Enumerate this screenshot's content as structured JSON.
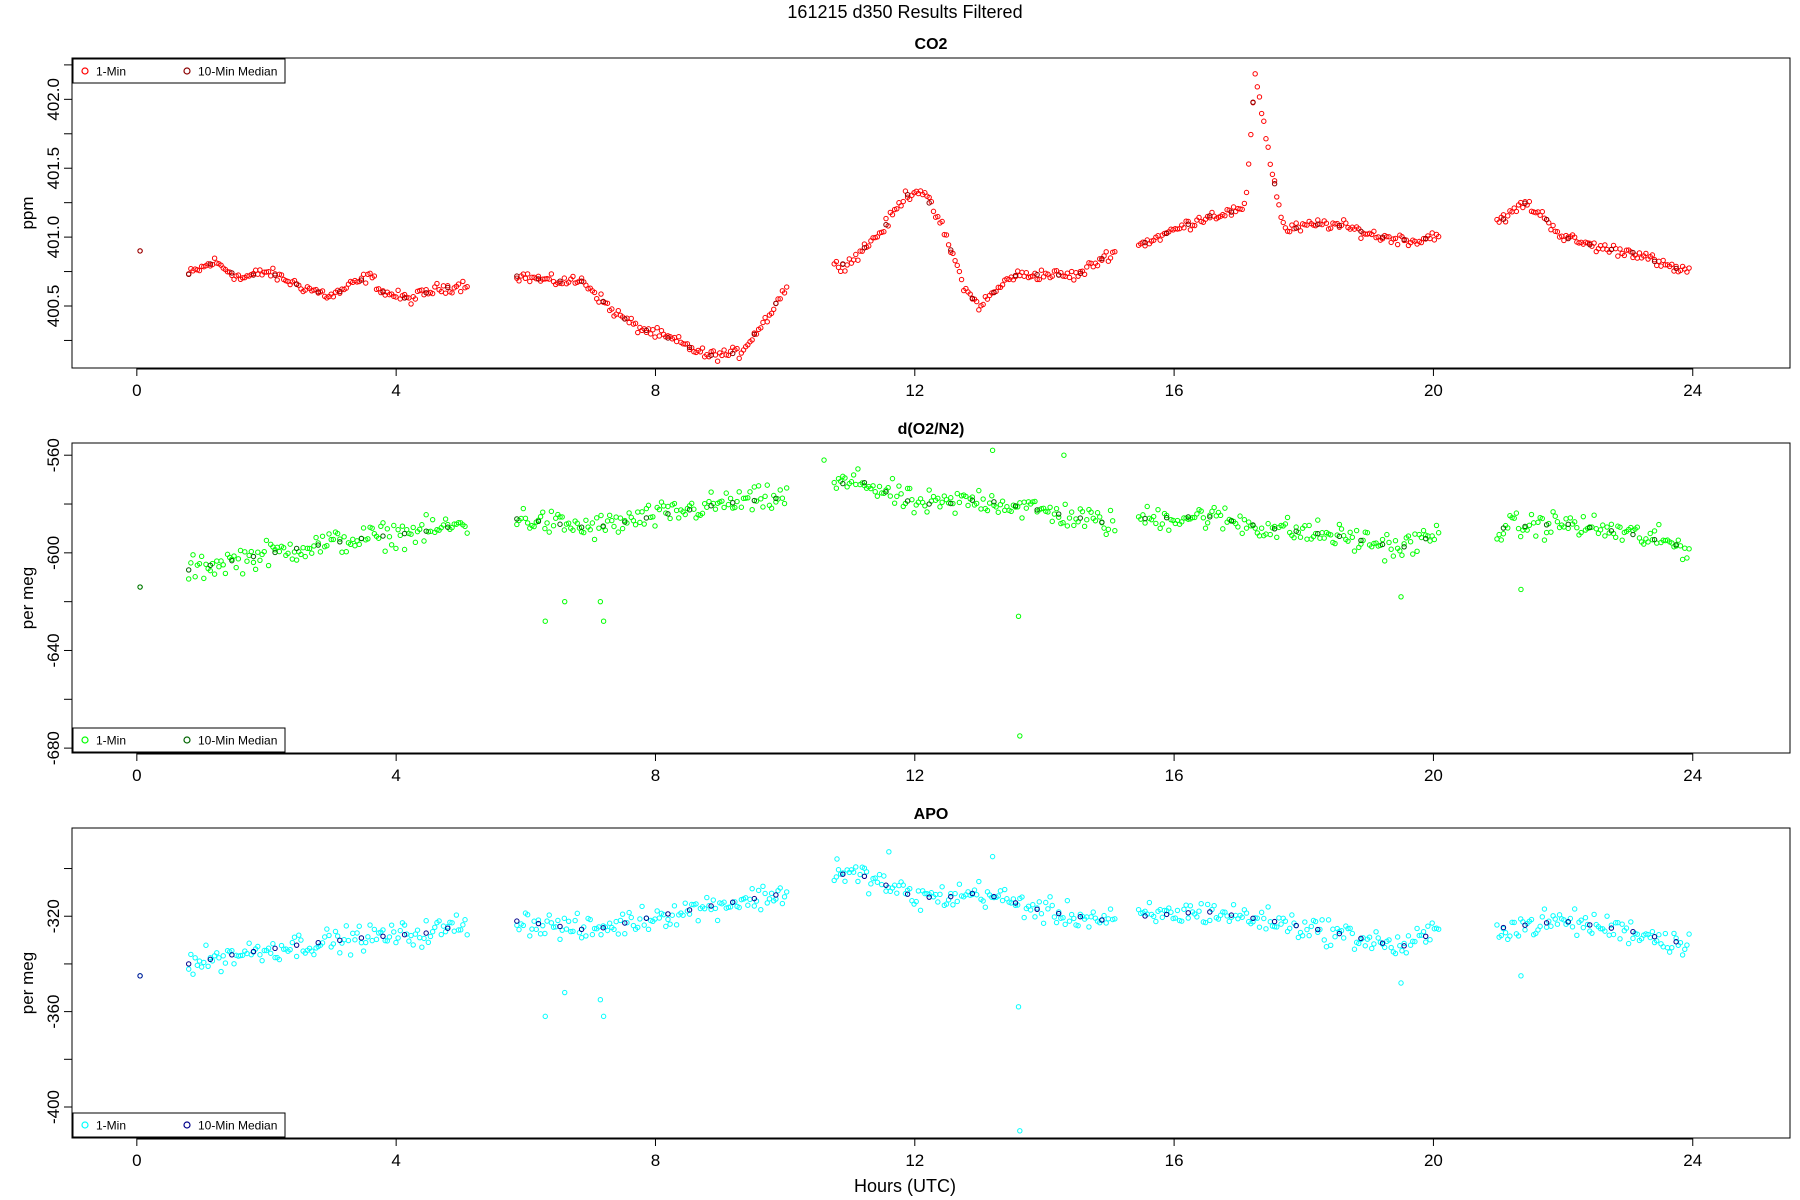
{
  "figure": {
    "title": "161215   d350   Results Filtered",
    "xlabel": "Hours (UTC)"
  },
  "legend": {
    "item1": "1-Min",
    "item2": "10-Min Median"
  },
  "chart_data": [
    {
      "type": "scatter",
      "title": "CO2",
      "ylabel": "ppm",
      "xlim": [
        -1,
        25.5
      ],
      "ylim": [
        400.05,
        402.3
      ],
      "xticks": [
        0,
        4,
        8,
        12,
        16,
        20,
        24
      ],
      "yticks": [
        400.5,
        401.0,
        401.5,
        402.0
      ],
      "ytick_labels": [
        "400.5",
        "401.0",
        "401.5",
        "402.0"
      ],
      "grid": false,
      "legend_position": "top-left",
      "colors": {
        "one_min": "#ff0000",
        "median": "#8b0000"
      },
      "keys": [
        [
          0.05,
          400.9
        ],
        [
          0.8,
          400.73
        ],
        [
          1.2,
          400.82
        ],
        [
          1.6,
          400.7
        ],
        [
          2.0,
          400.75
        ],
        [
          2.5,
          400.65
        ],
        [
          3.0,
          400.57
        ],
        [
          3.3,
          400.65
        ],
        [
          3.6,
          400.72
        ],
        [
          3.8,
          400.6
        ],
        [
          4.2,
          400.55
        ],
        [
          4.6,
          400.62
        ],
        [
          5.0,
          400.65
        ],
        [
          5.9,
          400.72
        ],
        [
          6.4,
          400.68
        ],
        [
          6.9,
          400.68
        ],
        [
          7.3,
          400.48
        ],
        [
          7.7,
          400.35
        ],
        [
          8.3,
          400.25
        ],
        [
          8.8,
          400.14
        ],
        [
          9.3,
          400.16
        ],
        [
          9.7,
          400.4
        ],
        [
          10.1,
          400.7
        ],
        [
          10.7,
          400.78
        ],
        [
          11.0,
          400.82
        ],
        [
          11.5,
          401.05
        ],
        [
          11.85,
          401.3
        ],
        [
          12.1,
          401.35
        ],
        [
          12.4,
          401.1
        ],
        [
          12.8,
          400.6
        ],
        [
          13.0,
          400.5
        ],
        [
          13.5,
          400.72
        ],
        [
          14.0,
          400.73
        ],
        [
          14.5,
          400.72
        ],
        [
          15.0,
          400.88
        ],
        [
          15.5,
          400.95
        ],
        [
          16.0,
          401.05
        ],
        [
          16.5,
          401.15
        ],
        [
          17.1,
          401.2
        ],
        [
          17.25,
          402.2
        ],
        [
          17.5,
          401.5
        ],
        [
          17.7,
          401.05
        ],
        [
          18.3,
          401.1
        ],
        [
          18.6,
          401.08
        ],
        [
          19.2,
          401.0
        ],
        [
          19.8,
          400.97
        ],
        [
          20.0,
          401.02
        ],
        [
          21.0,
          401.1
        ],
        [
          21.4,
          401.25
        ],
        [
          21.7,
          401.15
        ],
        [
          22.0,
          401.0
        ],
        [
          22.6,
          400.92
        ],
        [
          23.2,
          400.88
        ],
        [
          23.5,
          400.8
        ],
        [
          23.95,
          400.75
        ]
      ],
      "noise": 0.03,
      "spikes": [],
      "gaps": [
        [
          0.12,
          0.75
        ],
        [
          5.1,
          5.85
        ],
        [
          10.05,
          10.75
        ],
        [
          15.1,
          15.45
        ],
        [
          20.1,
          20.95
        ]
      ]
    },
    {
      "type": "scatter",
      "title": "d(O2/N2)",
      "ylabel": "per meg",
      "xlim": [
        -1,
        25.5
      ],
      "ylim": [
        -682,
        -555
      ],
      "xticks": [
        0,
        4,
        8,
        12,
        16,
        20,
        24
      ],
      "yticks": [
        -680,
        -640,
        -600,
        -560
      ],
      "ytick_labels": [
        "-680",
        "-640",
        "-600",
        "-560"
      ],
      "grid": false,
      "legend_position": "bottom-left",
      "colors": {
        "one_min": "#00ff00",
        "median": "#006400"
      },
      "keys": [
        [
          0.05,
          -614
        ],
        [
          0.8,
          -607
        ],
        [
          1.5,
          -603
        ],
        [
          2.5,
          -598
        ],
        [
          3.5,
          -594
        ],
        [
          4.5,
          -591
        ],
        [
          5.1,
          -588
        ],
        [
          5.9,
          -586
        ],
        [
          7.0,
          -590
        ],
        [
          8.0,
          -585
        ],
        [
          9.0,
          -580
        ],
        [
          10.1,
          -577
        ],
        [
          10.7,
          -572
        ],
        [
          11.2,
          -571
        ],
        [
          12.0,
          -580
        ],
        [
          12.5,
          -580
        ],
        [
          13.0,
          -578
        ],
        [
          14.0,
          -583
        ],
        [
          15.0,
          -588
        ],
        [
          15.5,
          -586
        ],
        [
          16.5,
          -585
        ],
        [
          17.5,
          -590
        ],
        [
          18.5,
          -593
        ],
        [
          19.5,
          -598
        ],
        [
          20.0,
          -593
        ],
        [
          21.0,
          -590
        ],
        [
          22.0,
          -588
        ],
        [
          23.0,
          -592
        ],
        [
          23.95,
          -598
        ]
      ],
      "noise": 4,
      "spikes": [
        [
          6.3,
          -628
        ],
        [
          6.6,
          -620
        ],
        [
          7.2,
          -628
        ],
        [
          7.15,
          -620
        ],
        [
          13.6,
          -626
        ],
        [
          13.62,
          -675
        ],
        [
          10.6,
          -562
        ],
        [
          13.2,
          -558
        ],
        [
          14.3,
          -560
        ],
        [
          19.5,
          -618
        ],
        [
          21.35,
          -615
        ]
      ],
      "gaps": [
        [
          0.12,
          0.75
        ],
        [
          5.1,
          5.85
        ],
        [
          10.05,
          10.75
        ],
        [
          15.1,
          15.45
        ],
        [
          20.1,
          20.95
        ]
      ]
    },
    {
      "type": "scatter",
      "title": "APO",
      "ylabel": "per meg",
      "xlim": [
        -1,
        25.5
      ],
      "ylim": [
        -413,
        -283
      ],
      "xticks": [
        0,
        4,
        8,
        12,
        16,
        20,
        24
      ],
      "yticks": [
        -400,
        -360,
        -320
      ],
      "ytick_labels": [
        "-400",
        "-360",
        "-320"
      ],
      "grid": false,
      "legend_position": "bottom-left",
      "colors": {
        "one_min": "#00ffff",
        "median": "#00008b"
      },
      "keys": [
        [
          0.05,
          -345
        ],
        [
          0.8,
          -340
        ],
        [
          1.5,
          -336
        ],
        [
          2.5,
          -332
        ],
        [
          3.5,
          -329
        ],
        [
          4.5,
          -327
        ],
        [
          5.1,
          -323
        ],
        [
          5.9,
          -322
        ],
        [
          7.0,
          -326
        ],
        [
          8.0,
          -320
        ],
        [
          9.0,
          -315
        ],
        [
          10.1,
          -310
        ],
        [
          10.7,
          -302
        ],
        [
          11.2,
          -303
        ],
        [
          12.0,
          -312
        ],
        [
          12.5,
          -312
        ],
        [
          13.0,
          -310
        ],
        [
          14.0,
          -318
        ],
        [
          15.0,
          -322
        ],
        [
          15.5,
          -320
        ],
        [
          16.5,
          -318
        ],
        [
          17.5,
          -322
        ],
        [
          18.5,
          -327
        ],
        [
          19.5,
          -333
        ],
        [
          20.0,
          -327
        ],
        [
          21.0,
          -325
        ],
        [
          22.0,
          -322
        ],
        [
          23.0,
          -326
        ],
        [
          23.95,
          -332
        ]
      ],
      "noise": 4,
      "spikes": [
        [
          6.3,
          -362
        ],
        [
          6.6,
          -352
        ],
        [
          7.2,
          -362
        ],
        [
          7.15,
          -355
        ],
        [
          13.6,
          -358
        ],
        [
          13.62,
          -410
        ],
        [
          10.8,
          -296
        ],
        [
          11.6,
          -293
        ],
        [
          13.2,
          -295
        ],
        [
          19.5,
          -348
        ],
        [
          21.35,
          -345
        ]
      ],
      "gaps": [
        [
          0.12,
          0.75
        ],
        [
          5.1,
          5.85
        ],
        [
          10.05,
          10.75
        ],
        [
          15.1,
          15.45
        ],
        [
          20.1,
          20.95
        ]
      ]
    }
  ]
}
